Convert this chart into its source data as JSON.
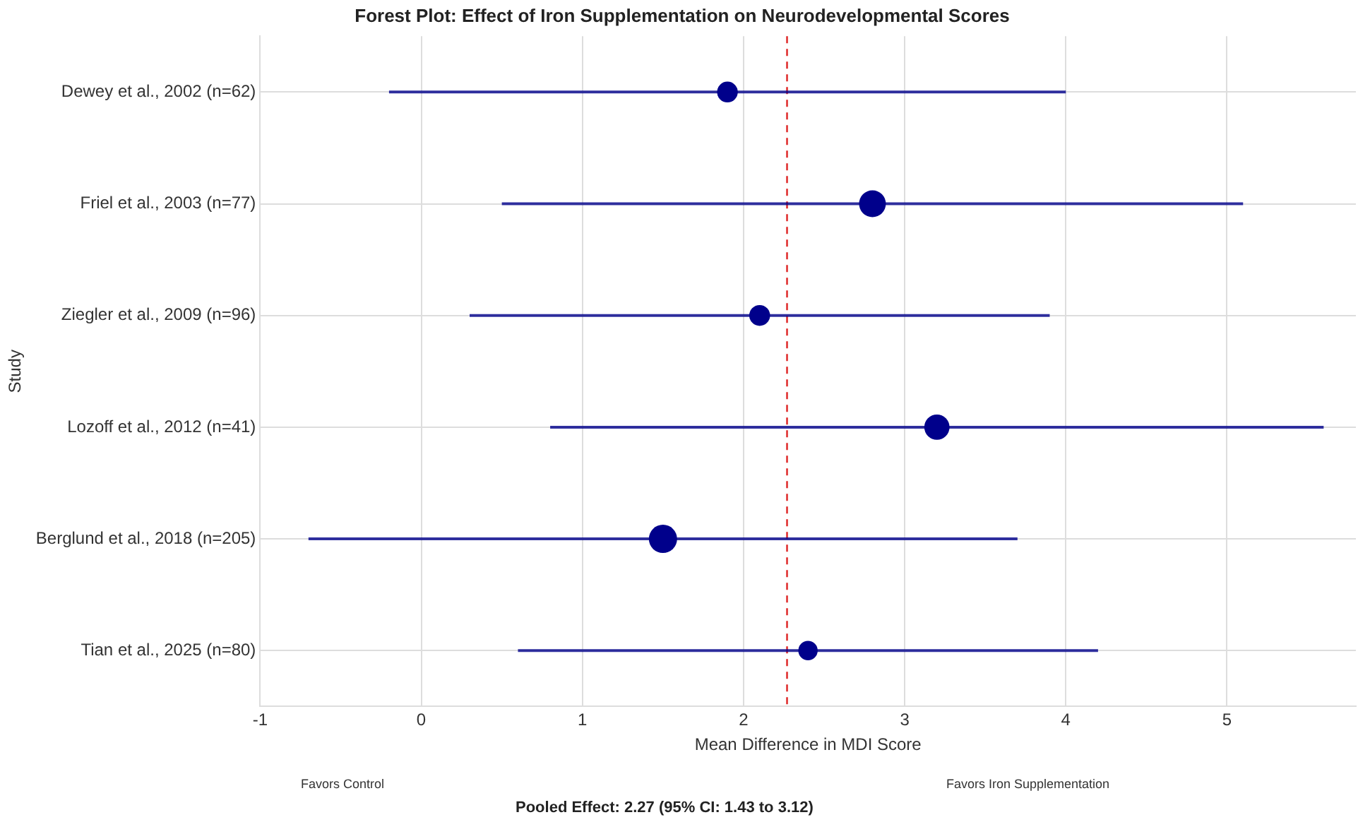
{
  "chart_data": {
    "type": "bubble",
    "title": "Forest Plot: Effect of Iron Supplementation on Neurodevelopmental Scores",
    "xlabel": "Mean Difference in MDI Score",
    "ylabel": "Study",
    "orientation": "horizontal",
    "categories": [
      "Dewey et al., 2002 (n=62)",
      "Friel et al., 2003 (n=77)",
      "Ziegler et al., 2009 (n=96)",
      "Lozoff et al., 2012 (n=41)",
      "Berglund et al., 2018 (n=205)",
      "Tian et al., 2025 (n=80)"
    ],
    "values": [
      1.9,
      2.8,
      2.1,
      3.2,
      1.5,
      2.4
    ],
    "errors": [
      [
        -0.2,
        4.0
      ],
      [
        0.5,
        5.1
      ],
      [
        0.3,
        3.9
      ],
      [
        0.8,
        5.6
      ],
      [
        -0.7,
        3.7
      ],
      [
        0.6,
        4.2
      ]
    ],
    "sizes": [
      0.54,
      0.9,
      0.54,
      0.8,
      1,
      0.47
    ],
    "color": "#00008b",
    "xlim": [
      -1,
      5.8
    ],
    "xticks": [
      -1,
      0,
      1,
      2,
      3,
      4,
      5
    ],
    "ref_lines": [
      {
        "axis": "x",
        "value": 2.27,
        "color": "#e03030",
        "line_style": "dashed"
      }
    ],
    "grid": true,
    "annotations": [
      "Favors Control",
      "Favors Iron Supplementation",
      "Pooled Effect: 2.27 (95% CI: 1.43 to 3.12)"
    ]
  }
}
